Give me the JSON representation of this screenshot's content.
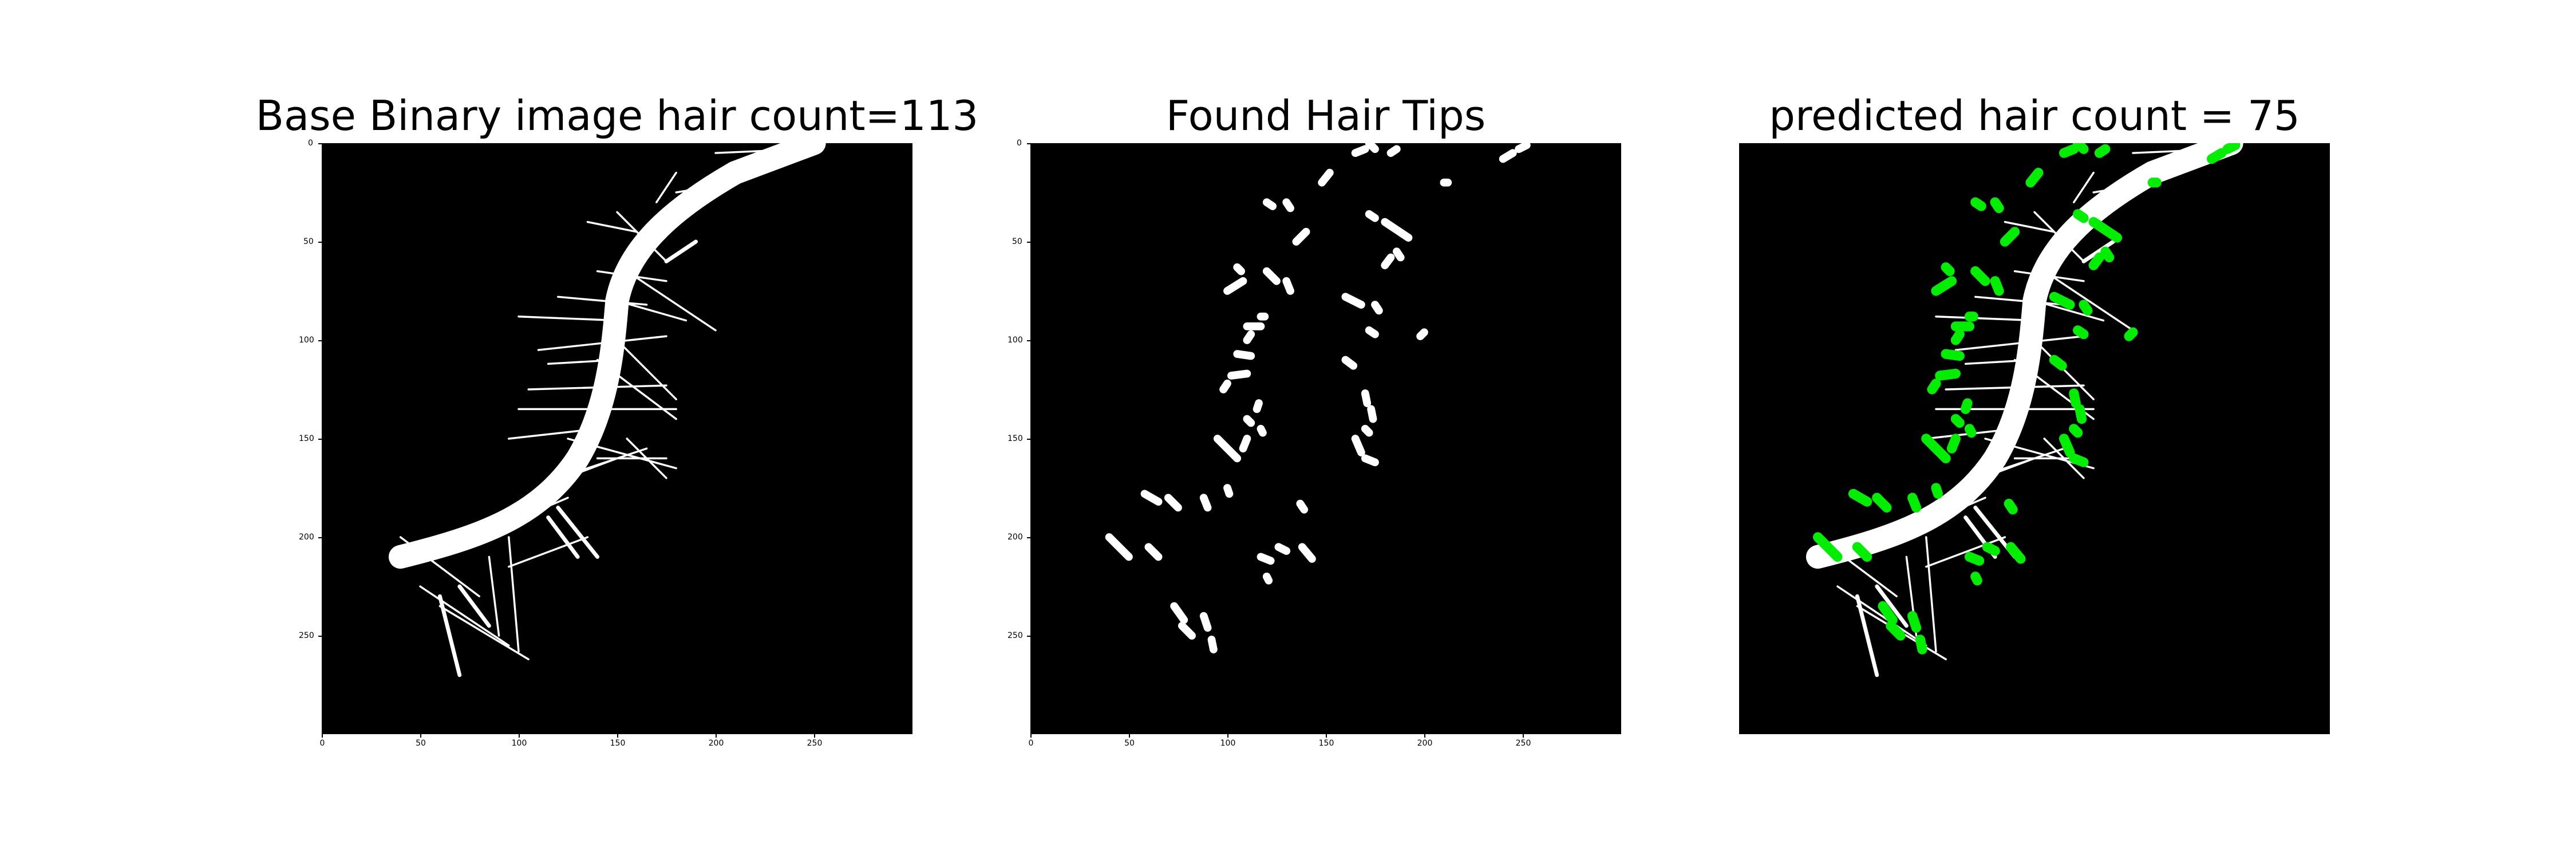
{
  "panels": [
    {
      "title": "Base Binary image hair count=113"
    },
    {
      "title": "Found Hair Tips"
    },
    {
      "title": "predicted hair count = 75"
    }
  ],
  "axes": {
    "x_ticks": [
      "0",
      "50",
      "100",
      "150",
      "200",
      "250"
    ],
    "y_ticks": [
      "0",
      "50",
      "100",
      "150",
      "200",
      "250"
    ]
  },
  "colors": {
    "background": "#000000",
    "hair": "#ffffff",
    "tip": "#00ee00"
  }
}
